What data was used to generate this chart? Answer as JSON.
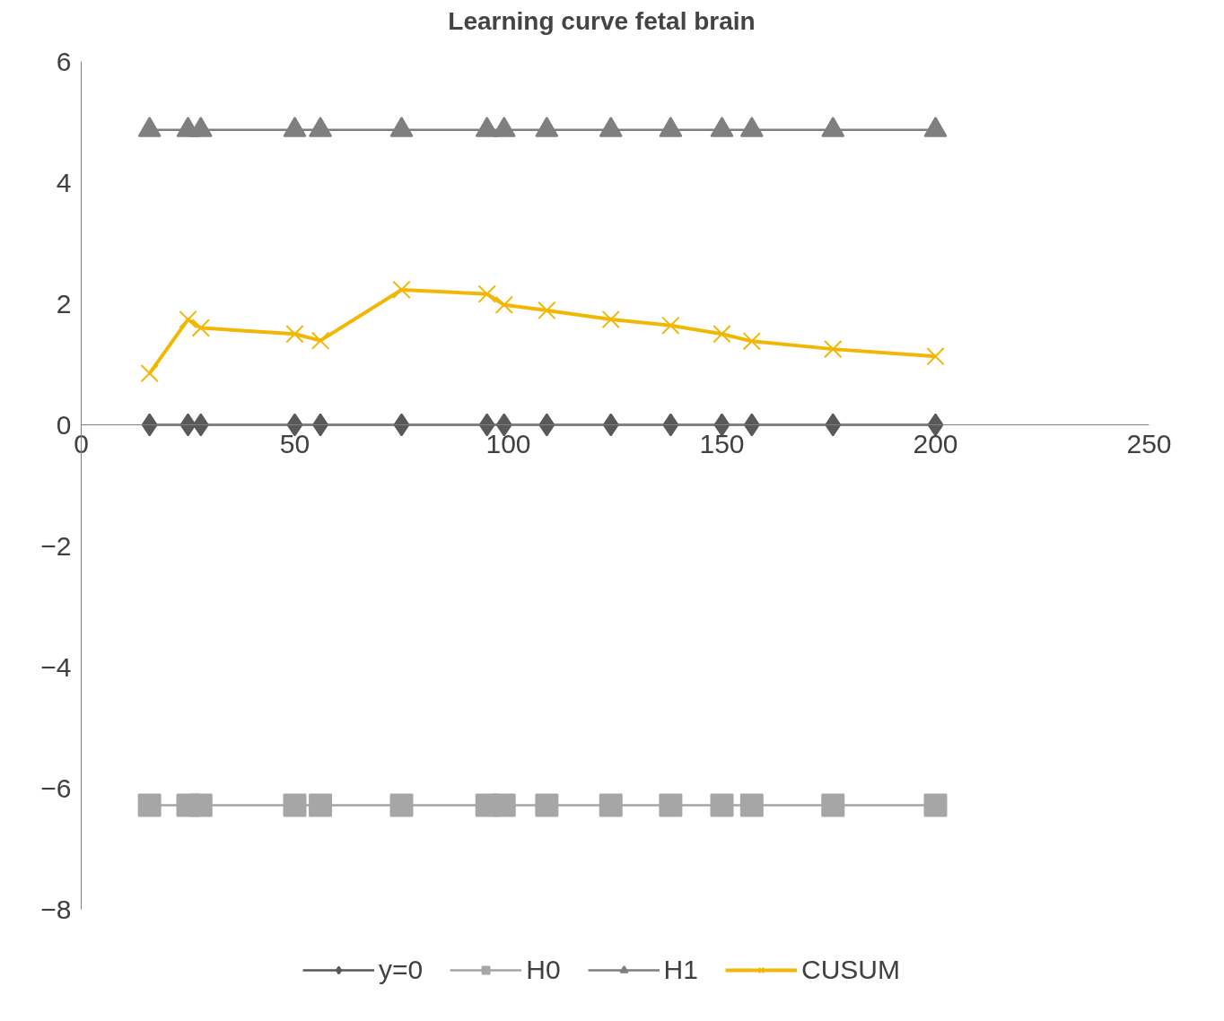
{
  "chart_data": {
    "type": "line",
    "title": "Learning curve fetal brain",
    "x": [
      16,
      25,
      28,
      50,
      56,
      75,
      95,
      99,
      109,
      124,
      138,
      150,
      157,
      176,
      200
    ],
    "xlim": [
      0,
      250
    ],
    "xticks": [
      0,
      50,
      100,
      150,
      200,
      250
    ],
    "ylim": [
      -8,
      6
    ],
    "yticks": [
      -8,
      -6,
      -4,
      -2,
      0,
      2,
      4,
      6
    ],
    "grid": false,
    "legend": "bottom",
    "series": [
      {
        "name": "y=0",
        "color": "#595959",
        "marker": "diamond",
        "values": [
          0,
          0,
          0,
          0,
          0,
          0,
          0,
          0,
          0,
          0,
          0,
          0,
          0,
          0,
          0
        ]
      },
      {
        "name": "H0",
        "color": "#a6a6a6",
        "marker": "square",
        "values": [
          -6.28,
          -6.28,
          -6.28,
          -6.28,
          -6.28,
          -6.28,
          -6.28,
          -6.28,
          -6.28,
          -6.28,
          -6.28,
          -6.28,
          -6.28,
          -6.28,
          -6.28
        ]
      },
      {
        "name": "H1",
        "color": "#7f7f7f",
        "marker": "triangle",
        "values": [
          4.87,
          4.87,
          4.87,
          4.87,
          4.87,
          4.87,
          4.87,
          4.87,
          4.87,
          4.87,
          4.87,
          4.87,
          4.87,
          4.87,
          4.87
        ]
      },
      {
        "name": "CUSUM",
        "color": "#f2b705",
        "marker": "cross",
        "values": [
          0.85,
          1.74,
          1.6,
          1.5,
          1.39,
          2.23,
          2.16,
          1.98,
          1.89,
          1.74,
          1.64,
          1.5,
          1.38,
          1.25,
          1.13
        ]
      }
    ]
  }
}
